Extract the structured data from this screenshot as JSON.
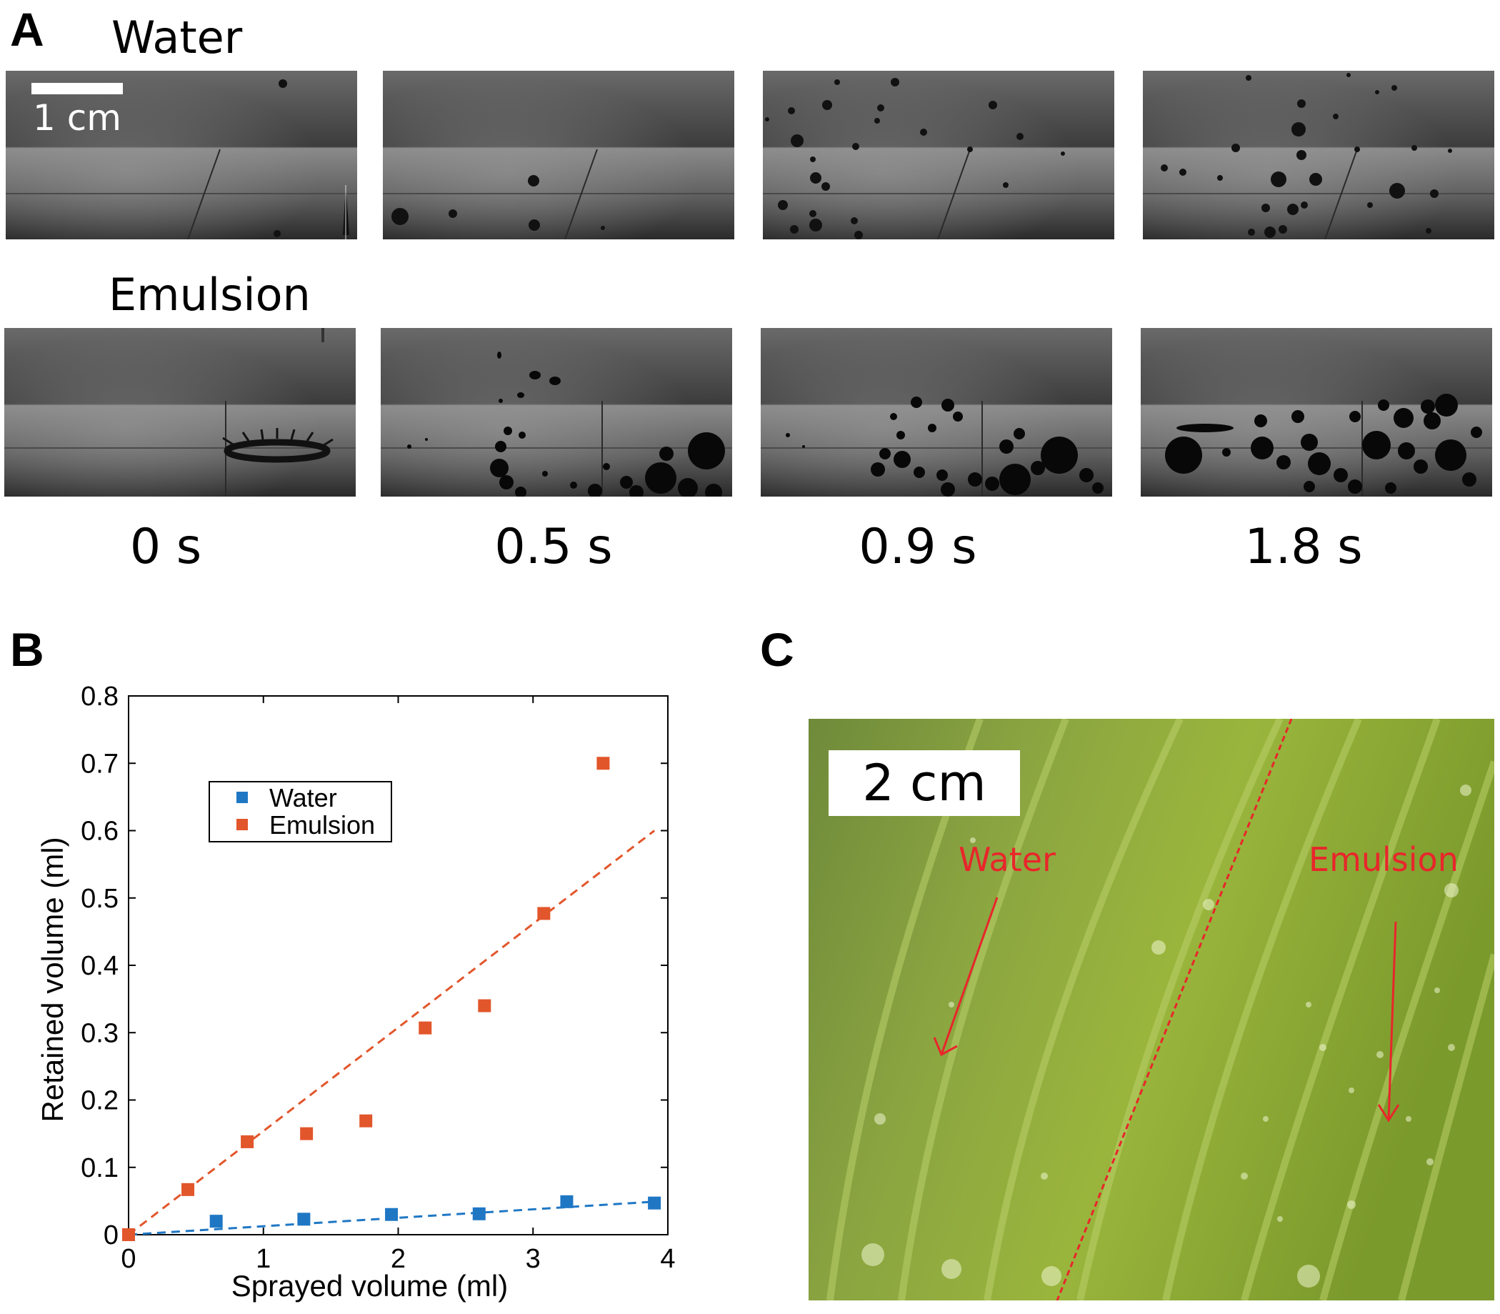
{
  "panels": {
    "a": {
      "letter": "A",
      "water_label": "Water",
      "emulsion_label": "Emulsion",
      "scale_bar_label": "1 cm",
      "times": [
        "0 s",
        "0.5 s",
        "0.9 s",
        "1.8 s"
      ]
    },
    "b": {
      "letter": "B"
    },
    "c": {
      "letter": "C",
      "scale_label": "2 cm",
      "water_label": "Water",
      "emulsion_label": "Emulsion"
    }
  },
  "chart_data": {
    "type": "scatter",
    "title": "",
    "xlabel": "Sprayed volume (ml)",
    "ylabel": "Retained volume (ml)",
    "xlim": [
      0,
      4
    ],
    "ylim": [
      0,
      0.8
    ],
    "xticks": [
      "0",
      "1",
      "2",
      "3",
      "4"
    ],
    "yticks": [
      "0",
      "0.1",
      "0.2",
      "0.3",
      "0.4",
      "0.5",
      "0.6",
      "0.7",
      "0.8"
    ],
    "legend_position": "upper-left",
    "series": [
      {
        "name": "Water",
        "color": "#1f77c4",
        "x": [
          0,
          0.65,
          1.3,
          1.95,
          2.6,
          3.25,
          3.9
        ],
        "y": [
          0,
          0.02,
          0.023,
          0.03,
          0.031,
          0.049,
          0.047
        ],
        "fit": {
          "x": [
            0,
            3.9
          ],
          "y": [
            0,
            0.049
          ]
        }
      },
      {
        "name": "Emulsion",
        "color": "#e2562b",
        "x": [
          0,
          0.44,
          0.88,
          1.32,
          1.76,
          2.2,
          2.64,
          3.08,
          3.52
        ],
        "y": [
          0,
          0.067,
          0.138,
          0.15,
          0.169,
          0.307,
          0.34,
          0.477,
          0.7
        ],
        "fit": {
          "x": [
            0,
            3.9
          ],
          "y": [
            0,
            0.6
          ]
        }
      }
    ]
  }
}
